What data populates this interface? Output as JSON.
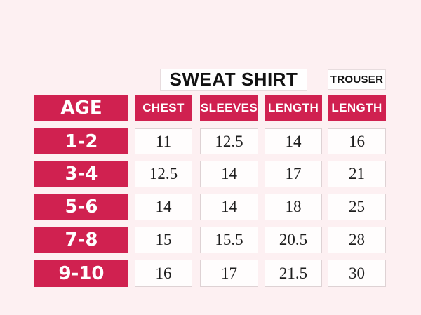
{
  "colors": {
    "accent": "#d02150",
    "background": "#fdf0f2",
    "cell_border": "#ded2d4",
    "number_text": "#1e1e1e"
  },
  "chart_data": {
    "type": "table",
    "sections": [
      "SWEAT SHIRT",
      "TROUSER"
    ],
    "columns": [
      "AGE",
      "CHEST",
      "SLEEVES",
      "LENGTH",
      "LENGTH"
    ],
    "rows": [
      [
        "1-2",
        "11",
        "12.5",
        "14",
        "16"
      ],
      [
        "3-4",
        "12.5",
        "14",
        "17",
        "21"
      ],
      [
        "5-6",
        "14",
        "14",
        "18",
        "25"
      ],
      [
        "7-8",
        "15",
        "15.5",
        "20.5",
        "28"
      ],
      [
        "9-10",
        "16",
        "17",
        "21.5",
        "30"
      ]
    ],
    "layout": {
      "section_sweat_shirt_spans_columns": [
        "CHEST",
        "SLEEVES",
        "LENGTH"
      ],
      "section_trouser_spans_columns": [
        "LENGTH"
      ]
    }
  }
}
